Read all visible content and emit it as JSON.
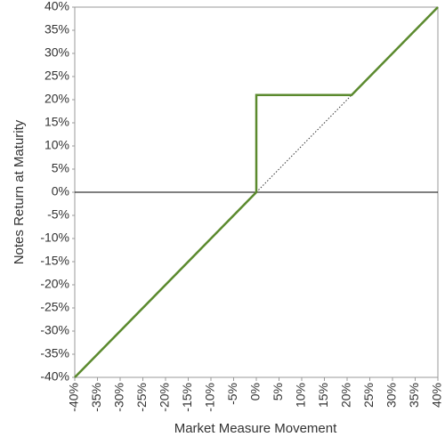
{
  "chart_data": {
    "type": "line",
    "x_label": "Market Measure Movement",
    "y_label": "Notes Return at Maturity",
    "series": [
      {
        "color": "#5b8a2e",
        "linestyle": "solid",
        "x": [
          -40,
          0,
          0,
          21,
          40
        ],
        "values": [
          -40,
          0,
          21,
          21,
          40
        ]
      },
      {
        "color": "#333333",
        "linestyle": "dotted",
        "x": [
          0,
          21
        ],
        "values": [
          0,
          21
        ]
      }
    ],
    "xlim": [
      -40,
      40
    ],
    "ylim": [
      -40,
      40
    ],
    "xticks": [
      {
        "value": -40,
        "label": "-40%"
      },
      {
        "value": -35,
        "label": "-35%"
      },
      {
        "value": -30,
        "label": "-30%"
      },
      {
        "value": -25,
        "label": "-25%"
      },
      {
        "value": -20,
        "label": "-20%"
      },
      {
        "value": -15,
        "label": "-15%"
      },
      {
        "value": -10,
        "label": "-10%"
      },
      {
        "value": -5,
        "label": "-5%"
      },
      {
        "value": 0,
        "label": "0%"
      },
      {
        "value": 5,
        "label": "5%"
      },
      {
        "value": 10,
        "label": "10%"
      },
      {
        "value": 15,
        "label": "15%"
      },
      {
        "value": 20,
        "label": "20%"
      },
      {
        "value": 25,
        "label": "25%"
      },
      {
        "value": 30,
        "label": "30%"
      },
      {
        "value": 35,
        "label": "35%"
      },
      {
        "value": 40,
        "label": "40%"
      }
    ],
    "yticks": [
      {
        "value": -40,
        "label": "-40%"
      },
      {
        "value": -35,
        "label": "-35%"
      },
      {
        "value": -30,
        "label": "-30%"
      },
      {
        "value": -25,
        "label": "-25%"
      },
      {
        "value": -20,
        "label": "-20%"
      },
      {
        "value": -15,
        "label": "-15%"
      },
      {
        "value": -10,
        "label": "-10%"
      },
      {
        "value": -5,
        "label": "-5%"
      },
      {
        "value": 0,
        "label": "0%"
      },
      {
        "value": 5,
        "label": "5%"
      },
      {
        "value": 10,
        "label": "10%"
      },
      {
        "value": 15,
        "label": "15%"
      },
      {
        "value": 20,
        "label": "20%"
      },
      {
        "value": 25,
        "label": "25%"
      },
      {
        "value": 30,
        "label": "30%"
      },
      {
        "value": 35,
        "label": "35%"
      },
      {
        "value": 40,
        "label": "40%"
      }
    ],
    "grid": false
  }
}
